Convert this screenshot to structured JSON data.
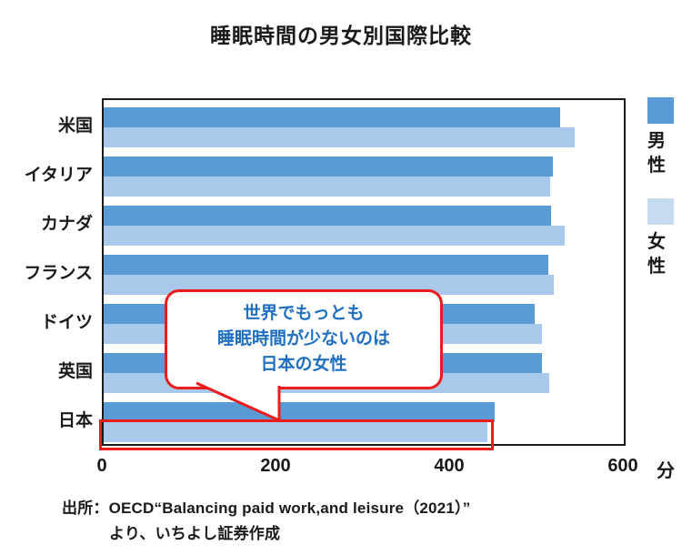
{
  "title": "睡眠時間の男女別国際比較",
  "legend": {
    "male_label": "男性",
    "female_label": "女性"
  },
  "colors": {
    "male": "#5B9BD5",
    "female": "#A9C9EA",
    "female_legend": "#C6DBF0",
    "red": "#EC1C1C",
    "callout_text": "#1F6FC2"
  },
  "callout": {
    "lines": [
      "世界でもっとも",
      "睡眠時間が少ないのは",
      "日本の女性"
    ]
  },
  "source": {
    "line1": "出所：OECD“Balancing paid work,and leisure（2021）”",
    "line2": "より、いちよし証券作成"
  },
  "chart_data": {
    "type": "bar",
    "orientation": "horizontal",
    "title": "睡眠時間の男女別国際比較",
    "categories": [
      "米国",
      "イタリア",
      "カナダ",
      "フランス",
      "ドイツ",
      "英国",
      "日本"
    ],
    "series": [
      {
        "name": "男性",
        "values": [
          527,
          518,
          516,
          513,
          497,
          506,
          451
        ]
      },
      {
        "name": "女性",
        "values": [
          543,
          515,
          532,
          519,
          506,
          514,
          443
        ]
      }
    ],
    "unit": "分",
    "x_ticks": [
      0,
      200,
      400,
      600
    ],
    "xlim": [
      0,
      600
    ],
    "grid": false,
    "legend_position": "right",
    "annotation": "世界でもっとも睡眠時間が少ないのは日本の女性",
    "highlight": {
      "category": "日本",
      "series": "女性"
    }
  }
}
